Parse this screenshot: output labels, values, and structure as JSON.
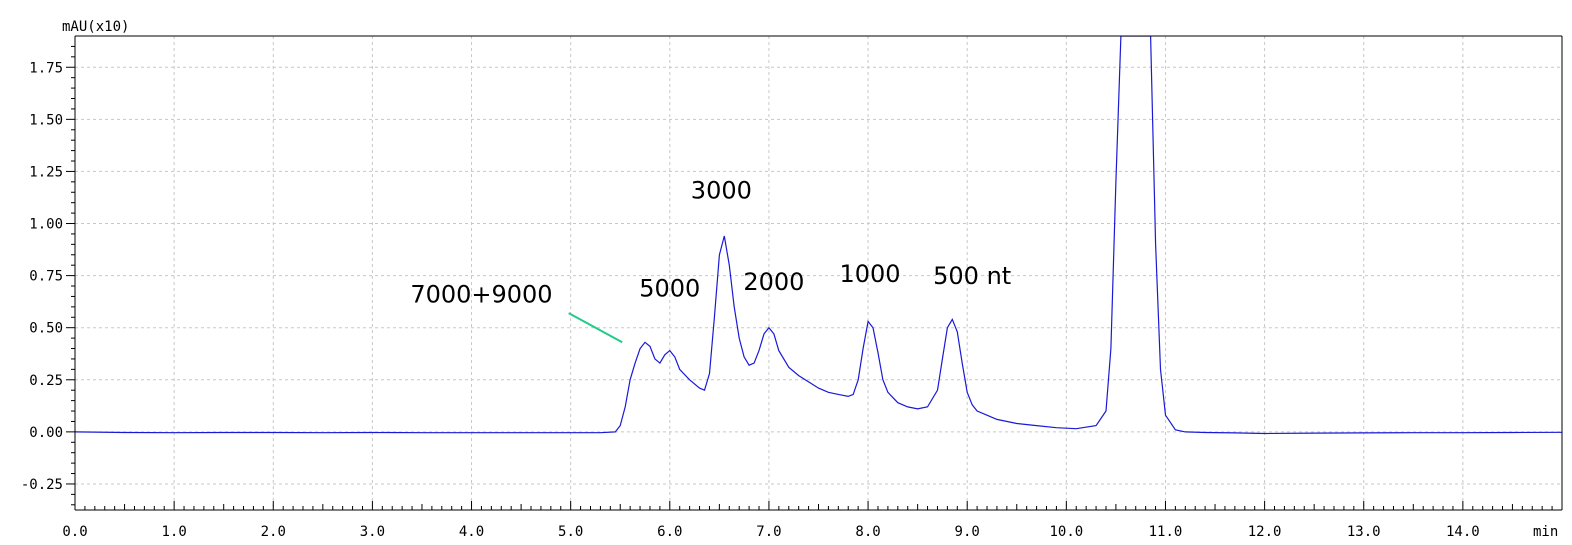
{
  "chart_data": {
    "type": "line",
    "title": "",
    "xlabel": "min",
    "ylabel": "mAU(x10)",
    "xlim": [
      0,
      15
    ],
    "ylim": [
      -0.375,
      1.9
    ],
    "grid": true,
    "x_ticks": [
      {
        "value": 0,
        "label": "0.0"
      },
      {
        "value": 1,
        "label": "1.0"
      },
      {
        "value": 2,
        "label": "2.0"
      },
      {
        "value": 3,
        "label": "3.0"
      },
      {
        "value": 4,
        "label": "4.0"
      },
      {
        "value": 5,
        "label": "5.0"
      },
      {
        "value": 6,
        "label": "6.0"
      },
      {
        "value": 7,
        "label": "7.0"
      },
      {
        "value": 8,
        "label": "8.0"
      },
      {
        "value": 9,
        "label": "9.0"
      },
      {
        "value": 10,
        "label": "10.0"
      },
      {
        "value": 11,
        "label": "11.0"
      },
      {
        "value": 12,
        "label": "12.0"
      },
      {
        "value": 13,
        "label": "13.0"
      },
      {
        "value": 14,
        "label": "14.0"
      }
    ],
    "y_ticks": [
      {
        "value": -0.25,
        "label": "-0.25"
      },
      {
        "value": 0.0,
        "label": "0.00"
      },
      {
        "value": 0.25,
        "label": "0.25"
      },
      {
        "value": 0.5,
        "label": "0.50"
      },
      {
        "value": 0.75,
        "label": "0.75"
      },
      {
        "value": 1.0,
        "label": "1.00"
      },
      {
        "value": 1.25,
        "label": "1.25"
      },
      {
        "value": 1.5,
        "label": "1.50"
      },
      {
        "value": 1.75,
        "label": "1.75"
      }
    ],
    "series": [
      {
        "color": "#1a1ad6",
        "x": [
          0.0,
          0.5,
          1.0,
          1.5,
          2.0,
          2.5,
          3.0,
          3.5,
          4.0,
          4.5,
          5.0,
          5.3,
          5.45,
          5.5,
          5.55,
          5.6,
          5.65,
          5.7,
          5.75,
          5.8,
          5.85,
          5.9,
          5.95,
          6.0,
          6.05,
          6.1,
          6.2,
          6.3,
          6.35,
          6.4,
          6.45,
          6.5,
          6.55,
          6.6,
          6.65,
          6.7,
          6.75,
          6.8,
          6.85,
          6.9,
          6.95,
          7.0,
          7.05,
          7.1,
          7.2,
          7.3,
          7.4,
          7.5,
          7.6,
          7.7,
          7.8,
          7.85,
          7.9,
          7.95,
          8.0,
          8.05,
          8.1,
          8.15,
          8.2,
          8.3,
          8.4,
          8.5,
          8.6,
          8.7,
          8.75,
          8.8,
          8.85,
          8.9,
          8.95,
          9.0,
          9.05,
          9.1,
          9.2,
          9.3,
          9.5,
          9.7,
          9.9,
          10.1,
          10.3,
          10.4,
          10.45,
          10.5,
          10.55,
          10.6,
          10.65,
          10.7,
          10.75,
          10.8,
          10.85,
          10.9,
          10.95,
          11.0,
          11.1,
          11.2,
          11.4,
          11.7,
          12.0,
          12.5,
          13.0,
          13.5,
          14.0,
          14.5,
          15.0
        ],
        "y": [
          0.0,
          -0.003,
          -0.004,
          -0.003,
          -0.003,
          -0.004,
          -0.003,
          -0.004,
          -0.004,
          -0.004,
          -0.004,
          -0.004,
          0.0,
          0.03,
          0.12,
          0.25,
          0.33,
          0.4,
          0.43,
          0.41,
          0.35,
          0.33,
          0.37,
          0.39,
          0.36,
          0.3,
          0.25,
          0.21,
          0.2,
          0.28,
          0.55,
          0.85,
          0.94,
          0.8,
          0.6,
          0.45,
          0.36,
          0.32,
          0.33,
          0.39,
          0.47,
          0.5,
          0.47,
          0.39,
          0.31,
          0.27,
          0.24,
          0.21,
          0.19,
          0.18,
          0.17,
          0.18,
          0.25,
          0.4,
          0.53,
          0.5,
          0.38,
          0.25,
          0.19,
          0.14,
          0.12,
          0.11,
          0.12,
          0.2,
          0.35,
          0.5,
          0.54,
          0.48,
          0.33,
          0.19,
          0.13,
          0.1,
          0.08,
          0.06,
          0.04,
          0.03,
          0.02,
          0.015,
          0.03,
          0.1,
          0.4,
          1.2,
          1.9,
          1.9,
          1.9,
          1.9,
          1.9,
          1.9,
          1.9,
          0.9,
          0.3,
          0.08,
          0.01,
          0.0,
          -0.003,
          -0.005,
          -0.008,
          -0.006,
          -0.005,
          -0.004,
          -0.004,
          -0.003,
          -0.002
        ]
      }
    ],
    "annotations": [
      {
        "text": "7000+9000",
        "x": 4.1,
        "y": 0.62
      },
      {
        "text": "5000",
        "x": 6.0,
        "y": 0.65
      },
      {
        "text": "3000",
        "x": 6.52,
        "y": 1.12
      },
      {
        "text": "2000",
        "x": 7.05,
        "y": 0.68
      },
      {
        "text": "1000",
        "x": 8.02,
        "y": 0.72
      },
      {
        "text": "500 nt",
        "x": 9.05,
        "y": 0.71
      }
    ],
    "pointer_line": {
      "color": "#22cc88",
      "x1": 4.98,
      "y1": 0.57,
      "x2": 5.52,
      "y2": 0.43
    }
  }
}
